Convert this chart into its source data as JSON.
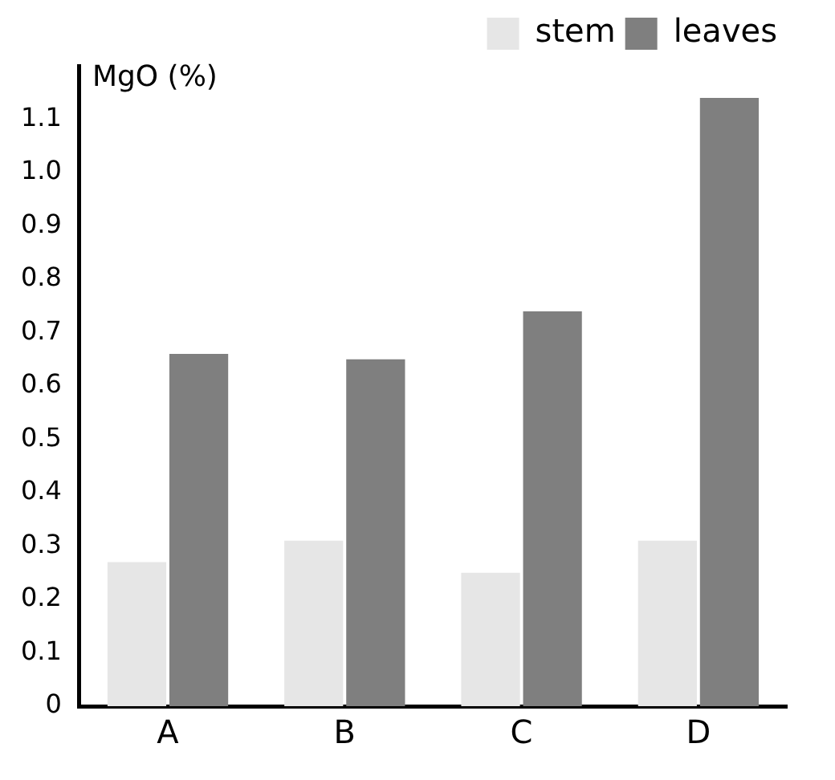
{
  "chart_data": {
    "type": "bar",
    "ylabel": "MgO (%)",
    "categories": [
      "A",
      "B",
      "C",
      "D"
    ],
    "series": [
      {
        "name": "stem",
        "color": "#e6e6e6",
        "values": [
          0.27,
          0.31,
          0.25,
          0.31
        ]
      },
      {
        "name": "leaves",
        "color": "#7f7f7f",
        "values": [
          0.66,
          0.65,
          0.74,
          1.14
        ]
      }
    ],
    "ylim": [
      0,
      1.2
    ],
    "yticks": [
      0,
      {
        "value": 0.1,
        "label": "0.1"
      },
      {
        "value": 0.2,
        "label": "0.2"
      },
      {
        "value": 0.3,
        "label": "0.3"
      },
      {
        "value": 0.4,
        "label": "0.4"
      },
      {
        "value": 0.5,
        "label": "0.5"
      },
      {
        "value": 0.6,
        "label": "0.6"
      },
      {
        "value": 0.7,
        "label": "0.7"
      },
      {
        "value": 0.8,
        "label": "0.8"
      },
      {
        "value": 0.9,
        "label": "0.9"
      },
      {
        "value": 1.0,
        "label": "1.0"
      },
      {
        "value": 1.1,
        "label": "1.1"
      }
    ],
    "grid": false,
    "legend": "top right"
  }
}
